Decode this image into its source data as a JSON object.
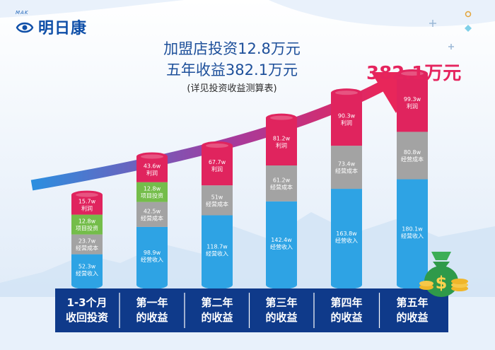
{
  "brand": {
    "logo_sub": "MAK",
    "name": "明日康",
    "logo_icon": "eye-icon"
  },
  "headline": {
    "line1": "加盟店投资12.8万元",
    "line2": "五年收益382.1万元",
    "line3": "(详见投资收益测算表)"
  },
  "total_callout": "382.1万元",
  "colors": {
    "profit": "#e0245e",
    "project_investment": "#74bd4a",
    "operating_cost": "#a3a3a3",
    "operating_income": "#2ea3e4",
    "base": "#0f3a8a",
    "headline": "#1d4f9a",
    "arrow_start": "#2b8fe0",
    "arrow_end": "#e8265a"
  },
  "chart_data": {
    "type": "bar",
    "stacked": true,
    "categories": [
      [
        "1-3个月",
        "收回投资"
      ],
      [
        "第一年",
        "的收益"
      ],
      [
        "第二年",
        "的收益"
      ],
      [
        "第三年",
        "的收益"
      ],
      [
        "第四年",
        "的收益"
      ],
      [
        "第五年",
        "的收益"
      ]
    ],
    "series": [
      {
        "key": "operating_income",
        "name": "经营收入",
        "values": [
          52.3,
          98.9,
          118.7,
          142.4,
          163.8,
          180.1
        ],
        "labels": [
          "52.3w",
          "98.9w",
          "118.7w",
          "142.4w",
          "163.8w",
          "180.1w"
        ]
      },
      {
        "key": "operating_cost",
        "name": "经营成本",
        "values": [
          23.7,
          42.5,
          51,
          61.2,
          73.4,
          80.8
        ],
        "labels": [
          "23.7w",
          "42.5w",
          "51w",
          "61.2w",
          "73.4w",
          "80.8w"
        ]
      },
      {
        "key": "project_investment",
        "name": "项目投资",
        "values": [
          12.8,
          12.8,
          null,
          null,
          null,
          null
        ],
        "labels": [
          "12.8w",
          "12.8w",
          null,
          null,
          null,
          null
        ]
      },
      {
        "key": "profit",
        "name": "利润",
        "values": [
          15.7,
          43.6,
          67.7,
          81.2,
          90.3,
          99.3
        ],
        "labels": [
          "15.7w",
          "43.6w",
          "67.7w",
          "81.2w",
          "90.3w",
          "99.3w"
        ]
      }
    ],
    "title": "",
    "xlabel": "",
    "ylabel": "",
    "grid": false,
    "decorations": [
      "trend-arrow",
      "money-bag-icon",
      "coin-stack-icon"
    ]
  }
}
